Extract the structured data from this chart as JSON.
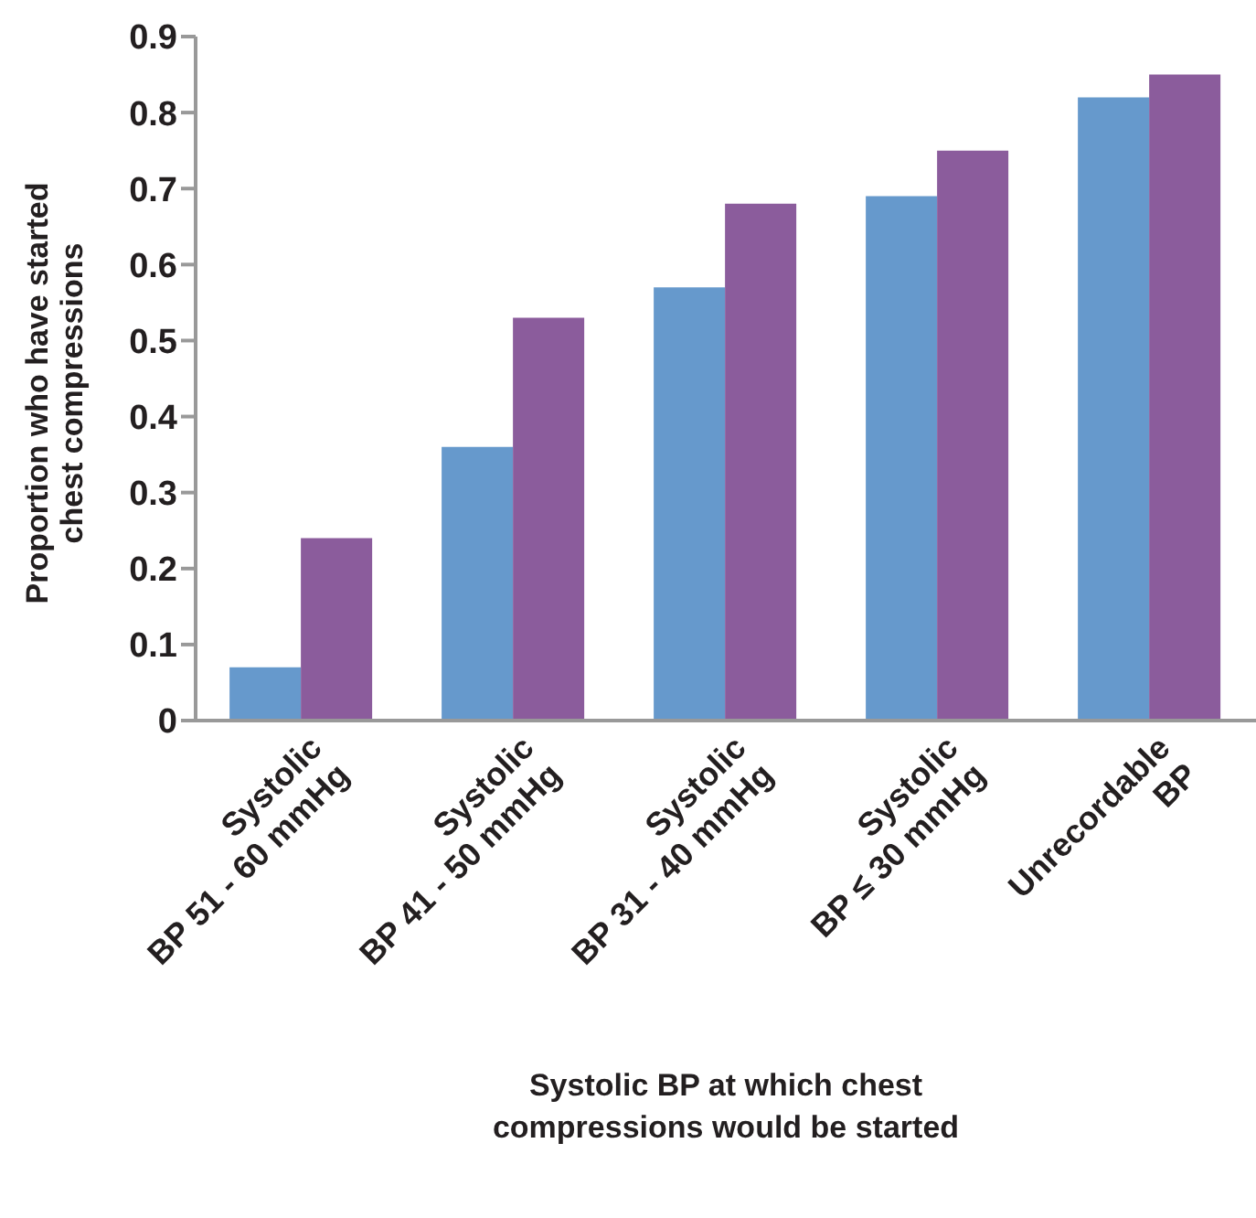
{
  "chart_data": {
    "type": "bar",
    "xlabel": "Systolic BP at which chest\ncompressions would be started",
    "ylabel": "Proportion who have started\nchest compressions",
    "categories": [
      "Systolic\nBP 51 - 60 mmHg",
      "Systolic\nBP 41 - 50 mmHg",
      "Systolic\nBP 31 - 40 mmHg",
      "Systolic\nBP ≤ 30 mmHg",
      "Unrecordable\nBP"
    ],
    "series": [
      {
        "color": "#6699cc",
        "values": [
          0.07,
          0.36,
          0.57,
          0.69,
          0.82
        ]
      },
      {
        "color": "#8b5c9c",
        "values": [
          0.24,
          0.53,
          0.68,
          0.75,
          0.85
        ]
      }
    ],
    "ylim": [
      0,
      0.9
    ],
    "yticks": [
      0,
      0.1,
      0.2,
      0.3,
      0.4,
      0.5,
      0.6,
      0.7,
      0.8,
      0.9
    ],
    "grid": false,
    "legend": false
  }
}
